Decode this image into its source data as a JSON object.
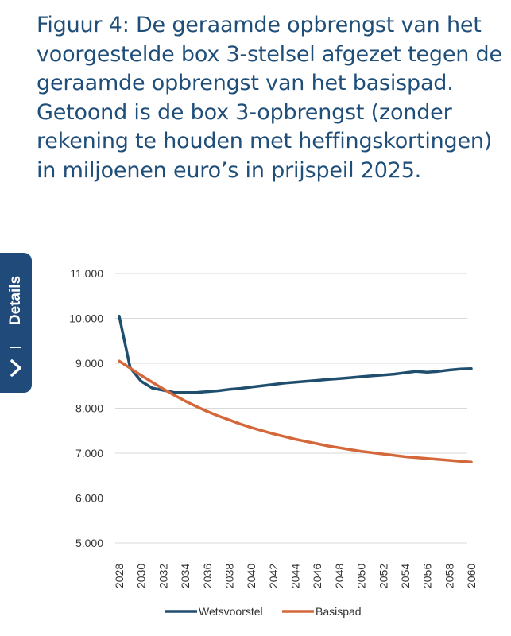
{
  "caption": "Figuur 4: De geraamde opbrengst van het voorgestelde box 3-stelsel afgezet tegen de geraamde opbrengst van het basispad. Getoond is de box 3-opbrengst (zonder rekening te houden met heffingskortingen) in miljoenen euro’s in prijspeil 2025.",
  "caption_lines": [
    "Figuur 4: De geraamde opbrengst van het",
    "voorgestelde box 3-stelsel afgezet tegen de",
    "geraamde opbrengst van het basispad.",
    "Getoond is de box 3-opbrengst (zonder",
    "rekening te houden met heffingskortingen)",
    "in miljoenen euro’s in prijspeil 2025."
  ],
  "details_tab": {
    "label": "Details",
    "icon": "chevron-right-icon",
    "background": "#1f4a7a"
  },
  "chart_data": {
    "type": "line",
    "title": "",
    "xlabel": "",
    "ylabel": "",
    "x": [
      2028,
      2029,
      2030,
      2031,
      2032,
      2033,
      2034,
      2035,
      2036,
      2037,
      2038,
      2039,
      2040,
      2041,
      2042,
      2043,
      2044,
      2045,
      2046,
      2047,
      2048,
      2049,
      2050,
      2051,
      2052,
      2053,
      2054,
      2055,
      2056,
      2057,
      2058,
      2059,
      2060
    ],
    "x_tick_labels": [
      "2028",
      "2030",
      "2032",
      "2034",
      "2036",
      "2038",
      "2040",
      "2042",
      "2044",
      "2046",
      "2048",
      "2050",
      "2052",
      "2054",
      "2056",
      "2058",
      "2060"
    ],
    "y_tick_labels": [
      "11.000",
      "10.000",
      "9.000",
      "8.000",
      "7.000",
      "6.000",
      "5.000"
    ],
    "y_ticks": [
      11000,
      10000,
      9000,
      8000,
      7000,
      6000,
      5000
    ],
    "ylim": [
      5000,
      11000
    ],
    "grid": true,
    "legend_position": "bottom",
    "series": [
      {
        "name": "Wetsvoorstel",
        "color": "#1f4e6e",
        "values": [
          10050,
          8900,
          8600,
          8450,
          8400,
          8350,
          8350,
          8350,
          8370,
          8390,
          8420,
          8440,
          8470,
          8500,
          8530,
          8560,
          8580,
          8600,
          8620,
          8640,
          8660,
          8680,
          8700,
          8720,
          8740,
          8760,
          8790,
          8820,
          8800,
          8820,
          8850,
          8870,
          8880
        ]
      },
      {
        "name": "Basispad",
        "color": "#d4683a",
        "values": [
          9050,
          8890,
          8730,
          8580,
          8430,
          8290,
          8160,
          8040,
          7930,
          7830,
          7740,
          7650,
          7570,
          7500,
          7430,
          7370,
          7310,
          7260,
          7210,
          7160,
          7120,
          7080,
          7040,
          7010,
          6980,
          6950,
          6920,
          6900,
          6880,
          6860,
          6840,
          6820,
          6800
        ]
      }
    ]
  }
}
